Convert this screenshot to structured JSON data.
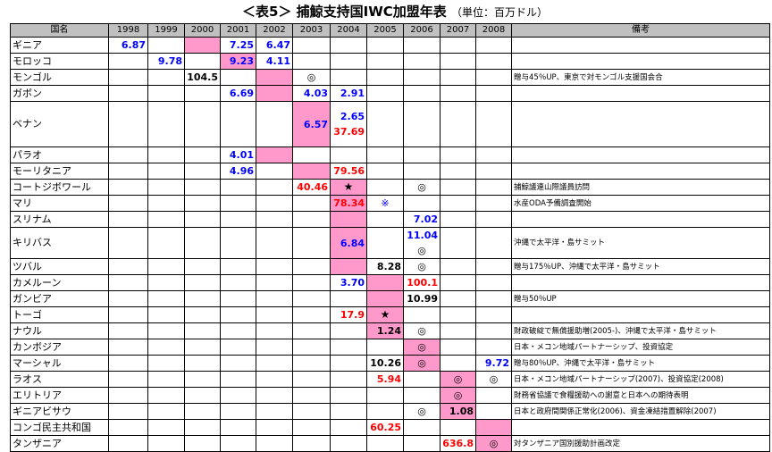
{
  "title": "＜表5＞ 捕鯨支持国IWC加盟年表",
  "unit": "（単位：百万ドル）",
  "headers": {
    "country": "国名",
    "years": [
      "1998",
      "1999",
      "2000",
      "2001",
      "2002",
      "2003",
      "2004",
      "2005",
      "2006",
      "2007",
      "2008"
    ],
    "notes": "備考"
  },
  "colors": {
    "pink_accession": "#ff99cc",
    "header_gray": "#c0c0c0",
    "blue_value": "#0000ff",
    "red_value": "#ff0000"
  },
  "legend_symbols": {
    "double_circle": "◎",
    "star": "★",
    "kome": "※"
  },
  "rows": [
    {
      "name": "ギニア",
      "pink": [
        2
      ],
      "cells": [
        {
          "col": 0,
          "v": [
            {
              "t": "6.87",
              "c": "blue"
            }
          ]
        },
        {
          "col": 3,
          "v": [
            {
              "t": "7.25",
              "c": "blue"
            }
          ]
        },
        {
          "col": 4,
          "v": [
            {
              "t": "6.47",
              "c": "blue"
            }
          ]
        }
      ],
      "note": ""
    },
    {
      "name": "モロッコ",
      "pink": [
        3
      ],
      "cells": [
        {
          "col": 1,
          "v": [
            {
              "t": "9.78",
              "c": "blue"
            }
          ]
        },
        {
          "col": 3,
          "v": [
            {
              "t": "9.23",
              "c": "blue"
            }
          ]
        },
        {
          "col": 4,
          "v": [
            {
              "t": "4.11",
              "c": "blue"
            }
          ]
        }
      ],
      "note": ""
    },
    {
      "name": "モンゴル",
      "pink": [
        4
      ],
      "cells": [
        {
          "col": 2,
          "v": [
            {
              "t": "104.5",
              "c": "black"
            }
          ]
        },
        {
          "col": 5,
          "v": [
            {
              "t": "◎",
              "c": "mk"
            }
          ]
        }
      ],
      "note": "贈与45％UP、東京で対モンゴル支援国会合"
    },
    {
      "name": "ガボン",
      "pink": [
        4
      ],
      "cells": [
        {
          "col": 3,
          "v": [
            {
              "t": "6.69",
              "c": "blue"
            }
          ]
        },
        {
          "col": 5,
          "v": [
            {
              "t": "4.03",
              "c": "blue"
            }
          ]
        },
        {
          "col": 6,
          "v": [
            {
              "t": "2.91",
              "c": "blue"
            }
          ]
        }
      ],
      "note": ""
    },
    {
      "name": "ベナン",
      "tall": 3,
      "pink": [
        5
      ],
      "cells": [
        {
          "col": 5,
          "v": [
            {
              "t": "6.57",
              "c": "blue"
            }
          ]
        },
        {
          "col": 6,
          "v": [
            {
              "t": "2.65",
              "c": "blue"
            },
            {
              "t": "37.69",
              "c": "red"
            }
          ]
        }
      ],
      "note": ""
    },
    {
      "name": "パラオ",
      "pink": [
        4
      ],
      "cells": [
        {
          "col": 3,
          "v": [
            {
              "t": "4.01",
              "c": "blue"
            }
          ]
        }
      ],
      "note": ""
    },
    {
      "name": "モーリタニア",
      "pink": [
        5
      ],
      "cells": [
        {
          "col": 3,
          "v": [
            {
              "t": "4.96",
              "c": "blue"
            }
          ]
        },
        {
          "col": 6,
          "v": [
            {
              "t": "79.56",
              "c": "red"
            }
          ]
        }
      ],
      "note": ""
    },
    {
      "name": "コートジボワール",
      "pink": [
        6
      ],
      "cells": [
        {
          "col": 5,
          "v": [
            {
              "t": "40.46",
              "c": "red"
            }
          ]
        },
        {
          "col": 6,
          "v": [
            {
              "t": "★",
              "c": "star"
            }
          ]
        },
        {
          "col": 8,
          "v": [
            {
              "t": "◎",
              "c": "mk"
            }
          ]
        }
      ],
      "note": "捕鯨議連山際議員訪問"
    },
    {
      "name": "マリ",
      "pink": [
        6
      ],
      "cells": [
        {
          "col": 6,
          "v": [
            {
              "t": "78.34",
              "c": "red"
            }
          ]
        },
        {
          "col": 7,
          "v": [
            {
              "t": "※",
              "c": "kome"
            }
          ]
        }
      ],
      "note": "水産ODA予備調査開始"
    },
    {
      "name": "スリナム",
      "pink": [
        6
      ],
      "cells": [
        {
          "col": 8,
          "v": [
            {
              "t": "7.02",
              "c": "blue"
            }
          ]
        }
      ],
      "note": ""
    },
    {
      "name": "キリバス",
      "tall": 2,
      "pink": [
        6
      ],
      "cells": [
        {
          "col": 6,
          "v": [
            {
              "t": "6.84",
              "c": "blue"
            }
          ]
        },
        {
          "col": 8,
          "v": [
            {
              "t": "11.04",
              "c": "blue"
            },
            {
              "t": "◎",
              "c": "mk"
            }
          ]
        }
      ],
      "note": "沖縄で太平洋・島サミット"
    },
    {
      "name": "ツバル",
      "pink": [
        6
      ],
      "cells": [
        {
          "col": 7,
          "v": [
            {
              "t": "8.28",
              "c": "black"
            }
          ]
        },
        {
          "col": 8,
          "v": [
            {
              "t": "◎",
              "c": "mk"
            }
          ]
        }
      ],
      "note": "贈与175％UP、沖縄で太平洋・島サミット"
    },
    {
      "name": "カメルーン",
      "pink": [
        7
      ],
      "cells": [
        {
          "col": 6,
          "v": [
            {
              "t": "3.70",
              "c": "blue"
            }
          ]
        },
        {
          "col": 8,
          "v": [
            {
              "t": "100.1",
              "c": "red"
            }
          ]
        }
      ],
      "note": ""
    },
    {
      "name": "ガンビア",
      "pink": [
        7
      ],
      "cells": [
        {
          "col": 8,
          "v": [
            {
              "t": "10.99",
              "c": "black"
            }
          ]
        }
      ],
      "note": "贈与50％UP"
    },
    {
      "name": "トーゴ",
      "pink": [
        7
      ],
      "cells": [
        {
          "col": 6,
          "v": [
            {
              "t": "17.9",
              "c": "red"
            }
          ]
        },
        {
          "col": 7,
          "v": [
            {
              "t": "★",
              "c": "star"
            }
          ]
        }
      ],
      "note": ""
    },
    {
      "name": "ナウル",
      "pink": [
        7
      ],
      "cells": [
        {
          "col": 7,
          "v": [
            {
              "t": "1.24",
              "c": "black"
            }
          ]
        },
        {
          "col": 8,
          "v": [
            {
              "t": "◎",
              "c": "mk"
            }
          ]
        }
      ],
      "note": "財政破綻で無償援助増(2005-)、沖縄で太平洋・島サミット"
    },
    {
      "name": "カンボジア",
      "pink": [
        8
      ],
      "cells": [
        {
          "col": 8,
          "v": [
            {
              "t": "◎",
              "c": "mk"
            }
          ]
        }
      ],
      "note": "日本・メコン地域パートナーシップ、投資協定"
    },
    {
      "name": "マーシャル",
      "pink": [
        8
      ],
      "cells": [
        {
          "col": 7,
          "v": [
            {
              "t": "10.26",
              "c": "black"
            }
          ]
        },
        {
          "col": 8,
          "v": [
            {
              "t": "◎",
              "c": "mk"
            }
          ]
        },
        {
          "col": 10,
          "v": [
            {
              "t": "9.72",
              "c": "blue"
            }
          ]
        }
      ],
      "note": "贈与80％UP、沖縄で太平洋・島サミット"
    },
    {
      "name": "ラオス",
      "pink": [
        9
      ],
      "cells": [
        {
          "col": 7,
          "v": [
            {
              "t": "5.94",
              "c": "red"
            }
          ]
        },
        {
          "col": 9,
          "v": [
            {
              "t": "◎",
              "c": "mk"
            }
          ]
        },
        {
          "col": 10,
          "v": [
            {
              "t": "◎",
              "c": "mk"
            }
          ]
        }
      ],
      "note": "日本・メコン地域パートナーシップ(2007)、投資協定(2008)"
    },
    {
      "name": "エリトリア",
      "pink": [
        9
      ],
      "cells": [
        {
          "col": 9,
          "v": [
            {
              "t": "◎",
              "c": "mk"
            }
          ]
        }
      ],
      "note": "財務省協議で食糧援助への謝意と日本への期待表明"
    },
    {
      "name": "ギニアビサウ",
      "pink": [
        9
      ],
      "cells": [
        {
          "col": 8,
          "v": [
            {
              "t": "◎",
              "c": "mk"
            }
          ]
        },
        {
          "col": 9,
          "v": [
            {
              "t": "1.08",
              "c": "black"
            }
          ]
        }
      ],
      "note": "日本と政府間関係正常化(2006)、資金凍結措置解除(2007)"
    },
    {
      "name": "コンゴ民主共和国",
      "pink": [
        10
      ],
      "cells": [
        {
          "col": 7,
          "v": [
            {
              "t": "60.25",
              "c": "red"
            }
          ]
        }
      ],
      "note": ""
    },
    {
      "name": "タンザニア",
      "pink": [
        10
      ],
      "cells": [
        {
          "col": 9,
          "v": [
            {
              "t": "636.8",
              "c": "red"
            }
          ]
        },
        {
          "col": 10,
          "v": [
            {
              "t": "◎",
              "c": "mk"
            }
          ]
        }
      ],
      "note": "対タンザニア国別援助計画改定"
    }
  ]
}
